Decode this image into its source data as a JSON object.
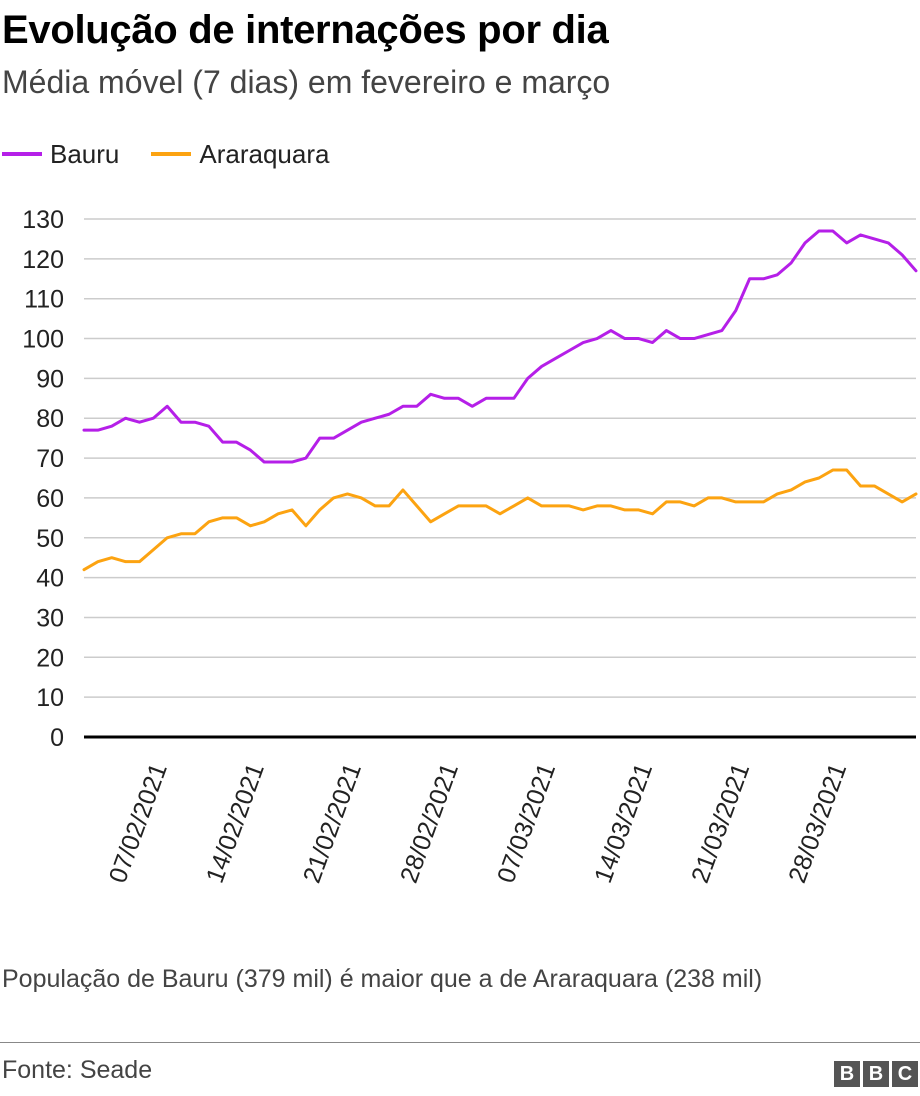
{
  "header": {
    "title": "Evolução de internações por dia",
    "subtitle": "Média móvel (7 dias) em fevereiro e março"
  },
  "footer": {
    "note": "População de Bauru (379 mil) é maior que a de Araraquara (238 mil)",
    "source": "Fonte: Seade",
    "logo_letters": [
      "B",
      "B",
      "C"
    ]
  },
  "chart_data": {
    "type": "line",
    "title": "Evolução de internações por dia",
    "subtitle": "Média móvel (7 dias) em fevereiro e março",
    "xlabel": "",
    "ylabel": "",
    "x_start": "01/02/2021",
    "x_end": "31/03/2021",
    "x_tick_labels": [
      "07/02/2021",
      "14/02/2021",
      "21/02/2021",
      "28/02/2021",
      "07/03/2021",
      "14/03/2021",
      "21/03/2021",
      "28/03/2021"
    ],
    "y_ticks": [
      0,
      10,
      20,
      30,
      40,
      50,
      60,
      70,
      80,
      90,
      100,
      110,
      120,
      130
    ],
    "ylim": [
      0,
      130
    ],
    "grid": true,
    "legend_position": "top-left",
    "series": [
      {
        "name": "Bauru",
        "color": "#b51fe8",
        "values": [
          77,
          77,
          78,
          80,
          79,
          80,
          83,
          79,
          79,
          78,
          74,
          74,
          72,
          69,
          69,
          69,
          70,
          75,
          75,
          77,
          79,
          80,
          81,
          83,
          83,
          86,
          85,
          85,
          83,
          85,
          85,
          85,
          90,
          93,
          95,
          97,
          99,
          100,
          102,
          100,
          100,
          99,
          102,
          100,
          100,
          101,
          102,
          107,
          115,
          115,
          116,
          119,
          124,
          127,
          127,
          124,
          126,
          125,
          124,
          121,
          117
        ]
      },
      {
        "name": "Araraquara",
        "color": "#fca311",
        "values": [
          42,
          44,
          45,
          44,
          44,
          47,
          50,
          51,
          51,
          54,
          55,
          55,
          53,
          54,
          56,
          57,
          53,
          57,
          60,
          61,
          60,
          58,
          58,
          62,
          58,
          54,
          56,
          58,
          58,
          58,
          56,
          58,
          60,
          58,
          58,
          58,
          57,
          58,
          58,
          57,
          57,
          56,
          59,
          59,
          58,
          60,
          60,
          59,
          59,
          59,
          61,
          62,
          64,
          65,
          67,
          67,
          63,
          63,
          61,
          59,
          61
        ]
      }
    ]
  }
}
